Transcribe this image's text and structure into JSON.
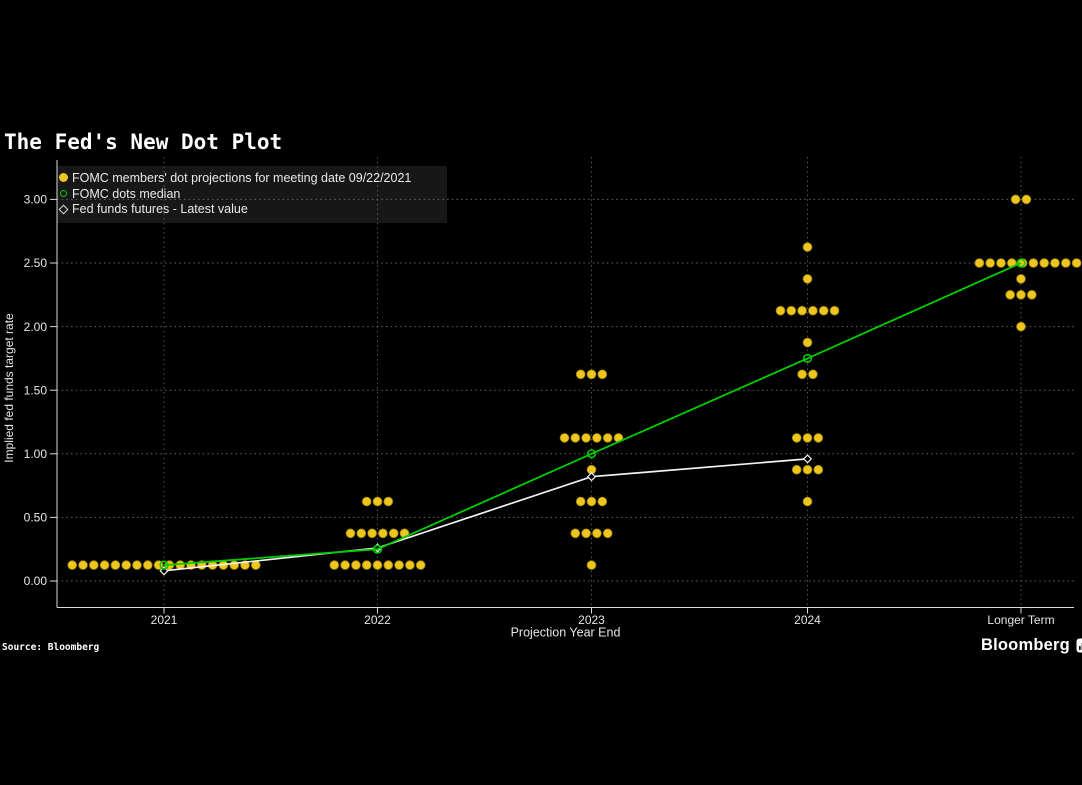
{
  "page": {
    "background": "#000000"
  },
  "title": "The Fed's New Dot Plot",
  "source_label": "Source: Bloomberg",
  "brand": {
    "wordmark": "Bloomberg",
    "icon": "bar-chart-terminal-icon"
  },
  "legend": {
    "position": "top-left",
    "items": [
      {
        "marker": "yellow-dot",
        "color": "#edc71d",
        "label": "FOMC members' dot projections for meeting date 09/22/2021"
      },
      {
        "marker": "green-open-circle",
        "color": "#00cc00",
        "label": "FOMC dots median"
      },
      {
        "marker": "white-open-diamond",
        "color": "#f2f2f2",
        "label": "Fed funds futures - Latest value"
      }
    ]
  },
  "chart_data": {
    "type": "scatter",
    "title": "The Fed's New Dot Plot",
    "xlabel": "Projection Year End",
    "ylabel": "Implied fed funds target rate",
    "categories": [
      "2021",
      "2022",
      "2023",
      "2024",
      "Longer Term"
    ],
    "y_ticks": [
      0.0,
      0.5,
      1.0,
      1.5,
      2.0,
      2.5,
      3.0
    ],
    "y_tick_labels": [
      "0.00",
      "0.50",
      "1.00",
      "1.50",
      "2.00",
      "2.50",
      "3.00"
    ],
    "ylim": [
      -0.21,
      3.32
    ],
    "grid": "dotted",
    "legend_position": "top-left",
    "series": [
      {
        "name": "FOMC members' dot projections for meeting date 09/22/2021",
        "type": "dots",
        "color": "#edc71d",
        "groups": [
          {
            "category": "2021",
            "rate": 0.125,
            "count": 18
          },
          {
            "category": "2022",
            "rate": 0.625,
            "count": 3
          },
          {
            "category": "2022",
            "rate": 0.375,
            "count": 6
          },
          {
            "category": "2022",
            "rate": 0.125,
            "count": 9
          },
          {
            "category": "2023",
            "rate": 1.625,
            "count": 3
          },
          {
            "category": "2023",
            "rate": 1.125,
            "count": 6
          },
          {
            "category": "2023",
            "rate": 0.875,
            "count": 1
          },
          {
            "category": "2023",
            "rate": 0.625,
            "count": 3
          },
          {
            "category": "2023",
            "rate": 0.375,
            "count": 4
          },
          {
            "category": "2023",
            "rate": 0.125,
            "count": 1
          },
          {
            "category": "2024",
            "rate": 2.625,
            "count": 1
          },
          {
            "category": "2024",
            "rate": 2.375,
            "count": 1
          },
          {
            "category": "2024",
            "rate": 2.125,
            "count": 6
          },
          {
            "category": "2024",
            "rate": 1.875,
            "count": 1
          },
          {
            "category": "2024",
            "rate": 1.625,
            "count": 2
          },
          {
            "category": "2024",
            "rate": 1.125,
            "count": 3
          },
          {
            "category": "2024",
            "rate": 0.875,
            "count": 3
          },
          {
            "category": "2024",
            "rate": 0.625,
            "count": 1
          },
          {
            "category": "Longer Term",
            "rate": 3.0,
            "count": 2
          },
          {
            "category": "Longer Term",
            "rate": 2.5,
            "count": 10,
            "dx": 7
          },
          {
            "category": "Longer Term",
            "rate": 2.375,
            "count": 1
          },
          {
            "category": "Longer Term",
            "rate": 2.25,
            "count": 3
          },
          {
            "category": "Longer Term",
            "rate": 2.0,
            "count": 1
          }
        ]
      },
      {
        "name": "FOMC dots median",
        "type": "line",
        "marker": "open-circle",
        "color": "#00cc00",
        "x": [
          "2021",
          "2022",
          "2023",
          "2024",
          "Longer Term"
        ],
        "values": [
          0.125,
          0.25,
          1.0,
          1.75,
          2.5
        ]
      },
      {
        "name": "Fed funds futures - Latest value",
        "type": "line",
        "marker": "open-diamond",
        "color": "#f2f2f2",
        "x": [
          "2021",
          "2022",
          "2023",
          "2024"
        ],
        "values": [
          0.08,
          0.26,
          0.82,
          0.96
        ]
      }
    ],
    "colors": {
      "background": "#000000",
      "dots": "#edc71d",
      "median_line": "#00cc00",
      "futures_line": "#f2f2f2",
      "grid": "#767676",
      "axis": "#d9d9d9",
      "tick_text": "#e6e6e6",
      "legend_bg": "#171717"
    }
  }
}
